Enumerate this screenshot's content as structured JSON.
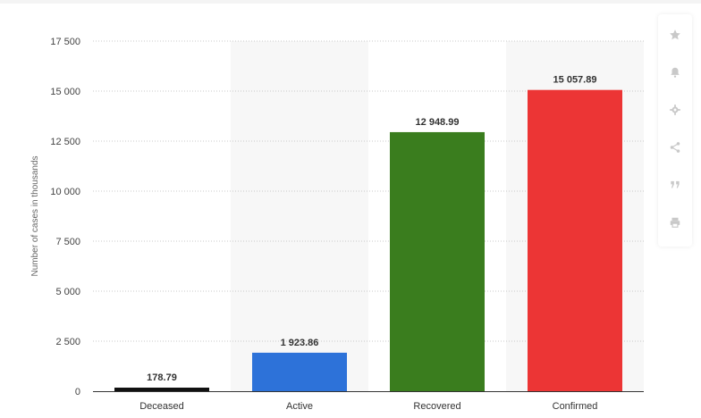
{
  "chart_data": {
    "type": "bar",
    "categories": [
      "Deceased",
      "Active",
      "Recovered",
      "Confirmed"
    ],
    "values": [
      178.79,
      1923.86,
      12948.99,
      15057.89
    ],
    "value_labels": [
      "178.79",
      "1 923.86",
      "12 948.99",
      "15 057.89"
    ],
    "bar_colors": [
      "#111111",
      "#2d72d9",
      "#3a7d1e",
      "#ec3535"
    ],
    "ylabel": "Number of cases in thousands",
    "xlabel": "",
    "ylim": [
      0,
      17500
    ],
    "yticks": [
      0,
      2500,
      5000,
      7500,
      10000,
      12500,
      15000,
      17500
    ],
    "ytick_labels": [
      "0",
      "2 500",
      "5 000",
      "7 500",
      "10 000",
      "12 500",
      "15 000",
      "17 500"
    ],
    "grid": true,
    "legend": "none"
  },
  "toolbar": {
    "items": [
      {
        "name": "star-icon"
      },
      {
        "name": "bell-icon"
      },
      {
        "name": "gear-icon"
      },
      {
        "name": "share-icon"
      },
      {
        "name": "quote-icon"
      },
      {
        "name": "print-icon"
      }
    ]
  }
}
